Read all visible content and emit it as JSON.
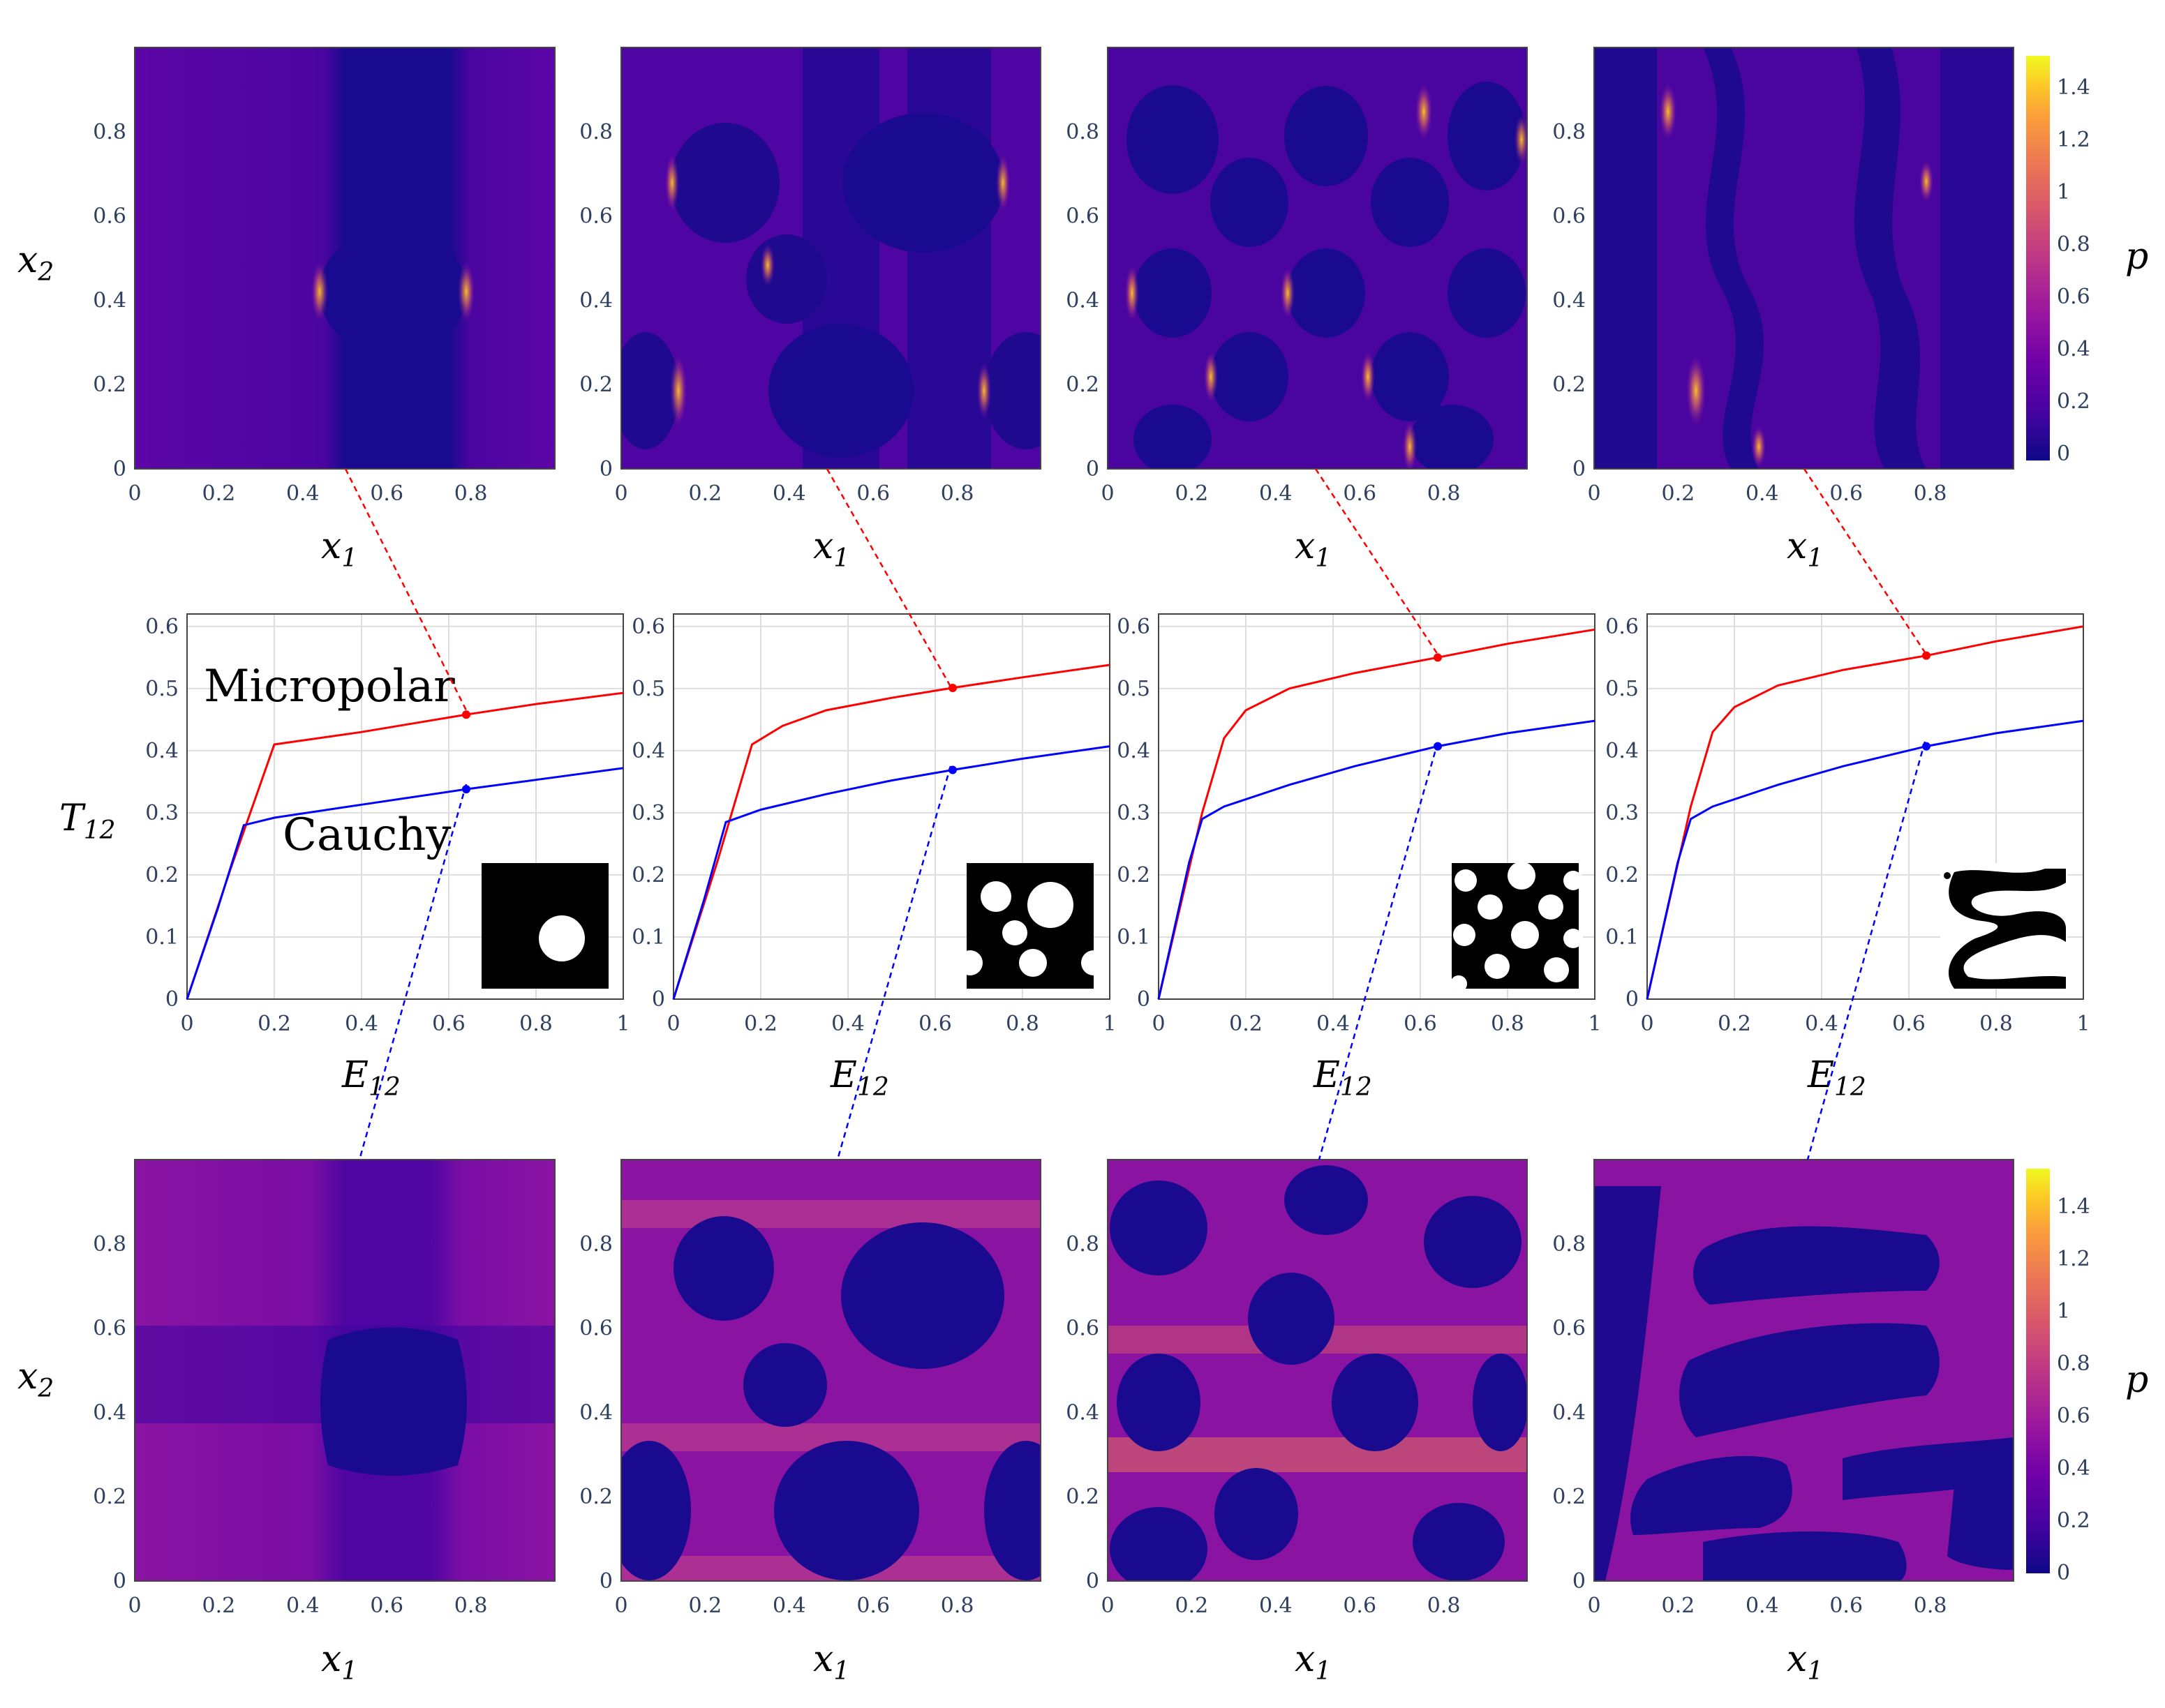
{
  "colors": {
    "micropolar": "#ff0000",
    "cauchy": "#0000ff",
    "colormap": [
      "#0d0887",
      "#46039f",
      "#7201a8",
      "#9c179e",
      "#bd3786",
      "#d8576b",
      "#ed7953",
      "#fb9f3a",
      "#fdca26",
      "#f0f921"
    ]
  },
  "chart_data": [
    {
      "type": "line",
      "panel": "stress-strain-1",
      "xlabel": "E",
      "xlabel_sub": "12",
      "ylabel": "T",
      "ylabel_sub": "12",
      "xlim": [
        0,
        1
      ],
      "ylim": [
        0,
        0.62
      ],
      "xticks": [
        "0",
        "0.2",
        "0.4",
        "0.6",
        "0.8",
        "1"
      ],
      "yticks": [
        "0",
        "0.1",
        "0.2",
        "0.3",
        "0.4",
        "0.5",
        "0.6"
      ],
      "annotations": [
        "Micropolar",
        "Cauchy"
      ],
      "inset_microstructure": "single-inclusion",
      "series": [
        {
          "name": "Micropolar",
          "x": [
            0,
            0.1,
            0.2,
            0.4,
            0.64,
            0.8,
            1.0
          ],
          "values": [
            0,
            0.21,
            0.41,
            0.43,
            0.458,
            0.475,
            0.493
          ],
          "marker": [
            0.64,
            0.458
          ]
        },
        {
          "name": "Cauchy",
          "x": [
            0,
            0.07,
            0.13,
            0.2,
            0.4,
            0.64,
            0.8,
            1.0
          ],
          "values": [
            0,
            0.145,
            0.28,
            0.292,
            0.313,
            0.338,
            0.353,
            0.372
          ],
          "marker": [
            0.64,
            0.338
          ]
        }
      ]
    },
    {
      "type": "line",
      "panel": "stress-strain-2",
      "xlabel": "E",
      "xlabel_sub": "12",
      "xlim": [
        0,
        1
      ],
      "ylim": [
        0,
        0.62
      ],
      "xticks": [
        "0",
        "0.2",
        "0.4",
        "0.6",
        "0.8",
        "1"
      ],
      "yticks": [],
      "inset_microstructure": "five-inclusions",
      "series": [
        {
          "name": "Micropolar",
          "x": [
            0,
            0.1,
            0.18,
            0.25,
            0.35,
            0.5,
            0.64,
            0.8,
            1.0
          ],
          "values": [
            0,
            0.22,
            0.41,
            0.44,
            0.465,
            0.485,
            0.501,
            0.518,
            0.538
          ]
        },
        {
          "name": "Cauchy",
          "x": [
            0,
            0.07,
            0.12,
            0.2,
            0.35,
            0.5,
            0.64,
            0.8,
            1.0
          ],
          "values": [
            0,
            0.16,
            0.285,
            0.305,
            0.33,
            0.352,
            0.369,
            0.387,
            0.407
          ]
        }
      ]
    },
    {
      "type": "line",
      "panel": "stress-strain-3",
      "xlabel": "E",
      "xlabel_sub": "12",
      "xlim": [
        0,
        1
      ],
      "ylim": [
        0,
        0.62
      ],
      "xticks": [
        "0",
        "0.2",
        "0.4",
        "0.6",
        "0.8",
        "1"
      ],
      "yticks": [],
      "inset_microstructure": "many-inclusions",
      "series": [
        {
          "name": "Micropolar",
          "x": [
            0,
            0.1,
            0.15,
            0.2,
            0.3,
            0.45,
            0.64,
            0.8,
            1.0
          ],
          "values": [
            0,
            0.3,
            0.42,
            0.465,
            0.5,
            0.525,
            0.55,
            0.572,
            0.595
          ]
        },
        {
          "name": "Cauchy",
          "x": [
            0,
            0.07,
            0.1,
            0.15,
            0.3,
            0.45,
            0.64,
            0.8,
            1.0
          ],
          "values": [
            0,
            0.22,
            0.29,
            0.31,
            0.345,
            0.375,
            0.407,
            0.428,
            0.448
          ]
        }
      ]
    },
    {
      "type": "line",
      "panel": "stress-strain-4",
      "xlabel": "E",
      "xlabel_sub": "12",
      "xlim": [
        0,
        1
      ],
      "ylim": [
        0,
        0.62
      ],
      "xticks": [
        "0",
        "0.2",
        "0.4",
        "0.6",
        "0.8",
        "1"
      ],
      "yticks": [],
      "inset_microstructure": "wavy-network",
      "series": [
        {
          "name": "Micropolar",
          "x": [
            0,
            0.1,
            0.15,
            0.2,
            0.3,
            0.45,
            0.64,
            0.8,
            1.0
          ],
          "values": [
            0,
            0.31,
            0.43,
            0.47,
            0.505,
            0.53,
            0.553,
            0.576,
            0.6
          ]
        },
        {
          "name": "Cauchy",
          "x": [
            0,
            0.07,
            0.1,
            0.15,
            0.3,
            0.45,
            0.64,
            0.8,
            1.0
          ],
          "values": [
            0,
            0.22,
            0.29,
            0.31,
            0.345,
            0.375,
            0.407,
            0.428,
            0.448
          ]
        }
      ]
    },
    {
      "type": "heatmap",
      "panel": "field-maps",
      "xlabel": "x",
      "xlabel_sub": "1",
      "ylabel": "x",
      "ylabel_sub": "2",
      "xticks": [
        "0",
        "0.2",
        "0.4",
        "0.6",
        "0.8"
      ],
      "yticks": [
        "0",
        "0.2",
        "0.4",
        "0.6",
        "0.8"
      ],
      "colorbar_label": "p",
      "colorbar_ticks": [
        "0",
        "0.2",
        "0.4",
        "0.6",
        "0.8",
        "1",
        "1.2",
        "1.4"
      ],
      "colorbar_range": [
        0,
        1.55
      ],
      "rows": [
        "Micropolar",
        "Cauchy"
      ],
      "columns": 4,
      "strain_marker": 0.64
    }
  ]
}
